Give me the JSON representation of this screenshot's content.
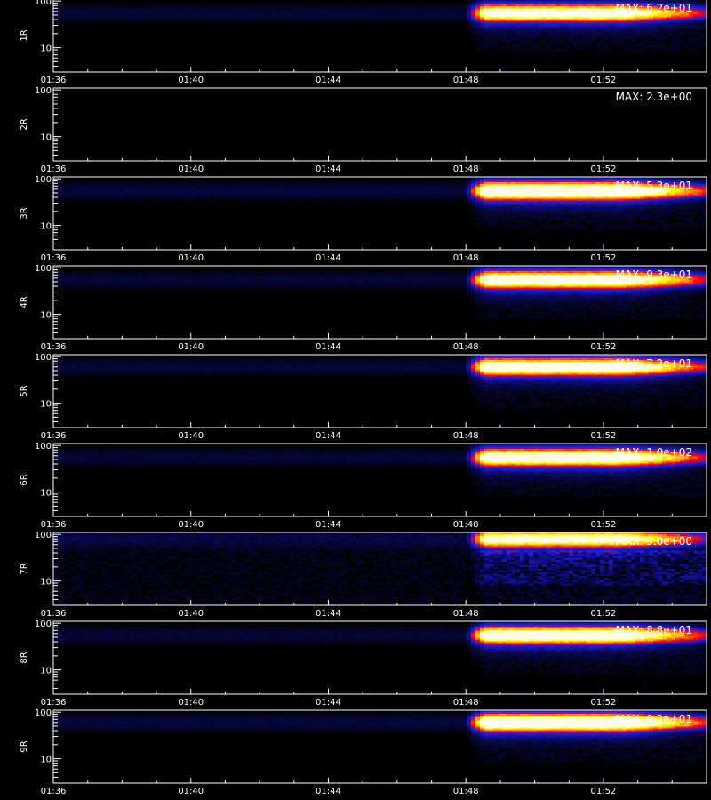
{
  "chart_data": {
    "type": "heatmap",
    "x_tick_labels": [
      "01:36",
      "01:40",
      "01:44",
      "01:48",
      "01:52"
    ],
    "x_tick_minutes": [
      96,
      100,
      104,
      108,
      112
    ],
    "x_range_minutes": [
      96,
      115
    ],
    "y_scale": "log",
    "y_tick_labels": [
      "100",
      "10"
    ],
    "y_tick_values": [
      100,
      10
    ],
    "y_range": [
      3,
      110
    ],
    "x_title": "",
    "panels": [
      {
        "label": "1R",
        "max_label": "MAX: 6.2e+01",
        "intensity": 0.85,
        "onset_minute": 108,
        "band_center": 55,
        "scatter": 0.15
      },
      {
        "label": "2R",
        "max_label": "MAX: 2.3e+00",
        "intensity": 0.0,
        "onset_minute": 108,
        "band_center": 55,
        "scatter": 0.0
      },
      {
        "label": "3R",
        "max_label": "MAX: 5.3e+01",
        "intensity": 1.0,
        "onset_minute": 108,
        "band_center": 55,
        "scatter": 0.15
      },
      {
        "label": "4R",
        "max_label": "MAX: 9.3e+01",
        "intensity": 0.9,
        "onset_minute": 108,
        "band_center": 55,
        "scatter": 0.15
      },
      {
        "label": "5R",
        "max_label": "MAX: 7.2e+01",
        "intensity": 0.9,
        "onset_minute": 108,
        "band_center": 60,
        "scatter": 0.15
      },
      {
        "label": "6R",
        "max_label": "MAX: 1.0e+02",
        "intensity": 0.9,
        "onset_minute": 108,
        "band_center": 55,
        "scatter": 0.15
      },
      {
        "label": "7R",
        "max_label": "MAX: 9.0e+00",
        "intensity": 0.8,
        "onset_minute": 108,
        "band_center": 80,
        "scatter": 0.6
      },
      {
        "label": "8R",
        "max_label": "MAX: 8.8e+01",
        "intensity": 0.9,
        "onset_minute": 108,
        "band_center": 55,
        "scatter": 0.15
      },
      {
        "label": "9R",
        "max_label": "MAX: 9.2e+01",
        "intensity": 1.0,
        "onset_minute": 108,
        "band_center": 60,
        "scatter": 0.15
      }
    ]
  },
  "colors": {
    "background": "#000000",
    "axis": "#ffffff",
    "colormap": [
      "#000000",
      "#0a0a6e",
      "#1e1ee6",
      "#ff0000",
      "#ff9a00",
      "#ffff00",
      "#ffffe6"
    ]
  }
}
